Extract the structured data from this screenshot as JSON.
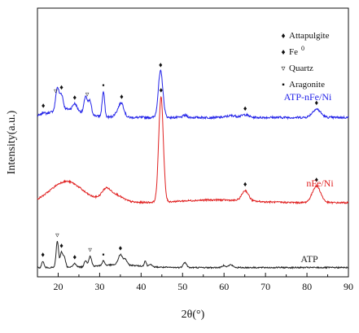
{
  "chart_data": {
    "type": "line",
    "xlabel": "2θ(°)",
    "ylabel": "Intensity(a.u.)",
    "xlim": [
      15,
      90
    ],
    "xticks": [
      20,
      30,
      40,
      50,
      60,
      70,
      80,
      90
    ],
    "x_tick_labels": [
      "20",
      "30",
      "40",
      "50",
      "60",
      "70",
      "80",
      "90"
    ],
    "grid": false,
    "legend_position": "top-right",
    "legend": [
      {
        "symbol": "♦",
        "name": "Attapulgite"
      },
      {
        "symbol": "♦",
        "name": "Fe",
        "superscript": "0"
      },
      {
        "symbol": "▿",
        "name": "Quartz"
      },
      {
        "symbol": "▪",
        "name": "Aragonite"
      }
    ],
    "series": [
      {
        "name": "ATP-nFe/Ni",
        "color": "#2323e8",
        "baseline": 8.6,
        "noise": 0.06,
        "broad": [
          [
            22,
            0.45,
            4
          ]
        ],
        "peaks": [
          [
            16.4,
            0.12,
            0.3
          ],
          [
            19.8,
            1.2,
            0.4
          ],
          [
            20.8,
            0.8,
            0.4
          ],
          [
            24.0,
            0.35,
            0.5
          ],
          [
            26.6,
            0.9,
            0.35
          ],
          [
            27.6,
            0.75,
            0.4
          ],
          [
            30.9,
            1.35,
            0.3
          ],
          [
            34.3,
            0.25,
            0.7
          ],
          [
            35.3,
            0.7,
            0.6
          ],
          [
            44.7,
            2.5,
            0.55
          ],
          [
            50.6,
            0.12,
            0.5
          ],
          [
            61.9,
            0.1,
            1.2
          ],
          [
            65.1,
            0.15,
            0.8
          ],
          [
            82.3,
            0.45,
            1.0
          ]
        ],
        "markers": [
          [
            16.4,
            "♦"
          ],
          [
            19.4,
            "▿"
          ],
          [
            20.8,
            "♦"
          ],
          [
            24.0,
            "♦"
          ],
          [
            27.0,
            "▿"
          ],
          [
            30.9,
            "▪"
          ],
          [
            35.3,
            "♦"
          ],
          [
            44.7,
            "♦"
          ],
          [
            65.1,
            "♦"
          ],
          [
            82.3,
            "♦"
          ]
        ]
      },
      {
        "name": "nFe/Ni",
        "color": "#e02020",
        "baseline": 4.0,
        "noise": 0.045,
        "broad": [
          [
            22,
            1.15,
            3.8
          ],
          [
            33.0,
            0.5,
            2.2
          ],
          [
            58.0,
            0.15,
            8
          ]
        ],
        "peaks": [
          [
            31.5,
            0.35,
            0.9
          ],
          [
            44.8,
            5.7,
            0.55
          ],
          [
            65.1,
            0.55,
            0.8
          ],
          [
            82.3,
            0.9,
            1.0
          ]
        ],
        "markers": [
          [
            44.8,
            "♦"
          ],
          [
            65.1,
            "♦"
          ],
          [
            82.3,
            "♦"
          ]
        ]
      },
      {
        "name": "ATP",
        "color": "#222222",
        "baseline": 0.5,
        "noise": 0.035,
        "broad": [
          [
            34.5,
            0.15,
            5
          ]
        ],
        "peaks": [
          [
            16.3,
            0.35,
            0.25
          ],
          [
            19.8,
            1.4,
            0.3
          ],
          [
            20.8,
            0.8,
            0.3
          ],
          [
            21.5,
            0.55,
            0.3
          ],
          [
            24.0,
            0.2,
            0.4
          ],
          [
            26.6,
            0.35,
            0.3
          ],
          [
            27.7,
            0.55,
            0.35
          ],
          [
            30.9,
            0.25,
            0.3
          ],
          [
            35.0,
            0.55,
            0.5
          ],
          [
            36.2,
            0.3,
            0.4
          ],
          [
            41.0,
            0.3,
            0.25
          ],
          [
            42.2,
            0.15,
            0.3
          ],
          [
            50.3,
            0.2,
            0.3
          ],
          [
            50.8,
            0.18,
            0.3
          ],
          [
            60.0,
            0.12,
            0.4
          ],
          [
            61.6,
            0.15,
            0.5
          ]
        ],
        "markers": [
          [
            16.3,
            "♦"
          ],
          [
            19.8,
            "▿"
          ],
          [
            20.8,
            "♦"
          ],
          [
            24.0,
            "♦"
          ],
          [
            27.7,
            "▿"
          ],
          [
            30.9,
            "▪"
          ],
          [
            35.0,
            "♦"
          ]
        ]
      }
    ]
  }
}
